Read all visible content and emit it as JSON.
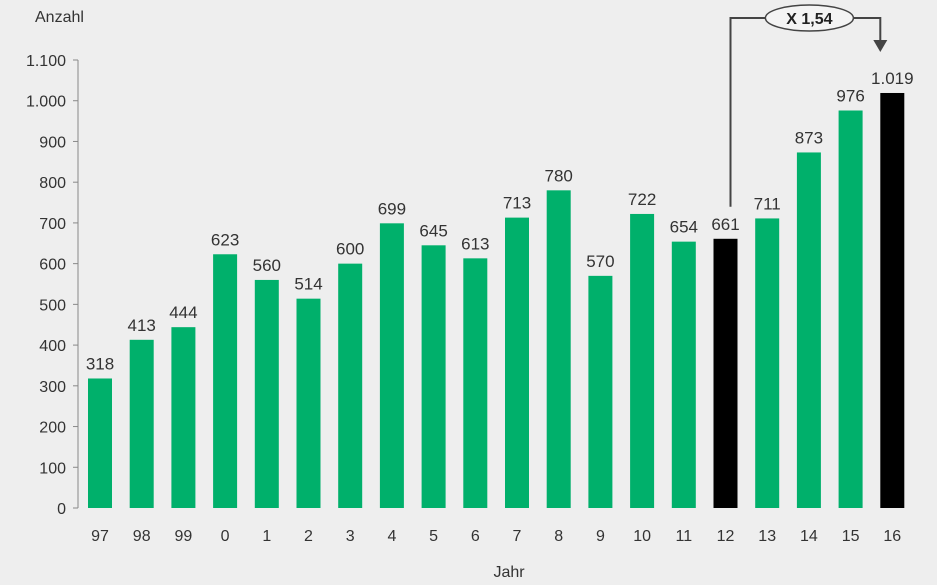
{
  "chart_data": {
    "type": "bar",
    "title": "",
    "ylabel": "Anzahl",
    "xlabel": "Jahr",
    "ylim": [
      0,
      1100
    ],
    "yticks": [
      {
        "value": 0,
        "label": "0"
      },
      {
        "value": 100,
        "label": "100"
      },
      {
        "value": 200,
        "label": "200"
      },
      {
        "value": 300,
        "label": "300"
      },
      {
        "value": 400,
        "label": "400"
      },
      {
        "value": 500,
        "label": "500"
      },
      {
        "value": 600,
        "label": "600"
      },
      {
        "value": 700,
        "label": "700"
      },
      {
        "value": 800,
        "label": "800"
      },
      {
        "value": 900,
        "label": "900"
      },
      {
        "value": 1000,
        "label": "1.000"
      },
      {
        "value": 1100,
        "label": "1.100"
      }
    ],
    "categories": [
      "97",
      "98",
      "99",
      "0",
      "1",
      "2",
      "3",
      "4",
      "5",
      "6",
      "7",
      "8",
      "9",
      "10",
      "11",
      "12",
      "13",
      "14",
      "15",
      "16"
    ],
    "values": [
      318,
      413,
      444,
      623,
      560,
      514,
      600,
      699,
      645,
      613,
      713,
      780,
      570,
      722,
      654,
      661,
      711,
      873,
      976,
      1019
    ],
    "value_labels": [
      "318",
      "413",
      "444",
      "623",
      "560",
      "514",
      "600",
      "699",
      "645",
      "613",
      "713",
      "780",
      "570",
      "722",
      "654",
      "661",
      "711",
      "873",
      "976",
      "1.019"
    ],
    "highlight_categories": [
      "12",
      "16"
    ],
    "grid": false,
    "legend": "none",
    "annotation": {
      "text": "X 1,54",
      "from_category": "12",
      "to_category": "16"
    },
    "colors": {
      "bar": "#00b06b",
      "highlight": "#000000",
      "axis": "#888888",
      "annotation_line": "#444444"
    }
  }
}
